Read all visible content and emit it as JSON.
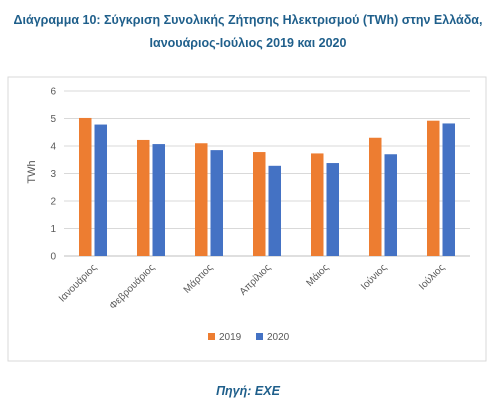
{
  "figure": {
    "title_line1": "Διάγραμμα 10: Σύγκριση Συνολικής Ζήτησης Ηλεκτρισμού (TWh) στην Ελλάδα,",
    "title_line2": "Ιανουάριος-Ιούλιος 2019 και 2020",
    "source": "Πηγή: ΕΧΕ"
  },
  "chart_data": {
    "type": "bar",
    "categories": [
      "Ιανουάριος",
      "Φεβρουάριος",
      "Μάρτιος",
      "Απρίλιος",
      "Μάιος",
      "Ιούνιος",
      "Ιούλιος"
    ],
    "series": [
      {
        "name": "2019",
        "color": "#ed7d31",
        "values": [
          5.02,
          4.22,
          4.1,
          3.78,
          3.73,
          4.3,
          4.92
        ]
      },
      {
        "name": "2020",
        "color": "#4472c4",
        "values": [
          4.78,
          4.07,
          3.85,
          3.28,
          3.38,
          3.7,
          4.82
        ]
      }
    ],
    "ylabel": "TWh",
    "xlabel": "",
    "ylim": [
      0,
      6
    ],
    "yticks": [
      "0",
      "1",
      "2",
      "3",
      "4",
      "5",
      "6"
    ],
    "grid": true,
    "legend": "bottom",
    "border": true
  }
}
